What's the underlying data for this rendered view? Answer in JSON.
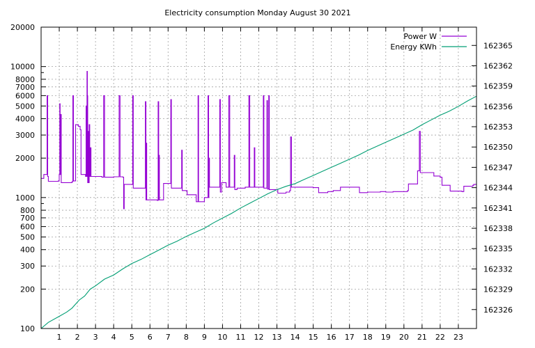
{
  "chart_data": {
    "type": "line",
    "title": "Electricity consumption Monday August 30 2021",
    "xlabel": "",
    "ylabel": "",
    "y2label": "",
    "grid": true,
    "legend_position": "top-right",
    "x_range": [
      0,
      24
    ],
    "x_ticks": [
      "1",
      "2",
      "3",
      "4",
      "5",
      "6",
      "7",
      "8",
      "9",
      "10",
      "11",
      "12",
      "13",
      "14",
      "15",
      "16",
      "17",
      "18",
      "19",
      "20",
      "21",
      "22",
      "23"
    ],
    "y_scale": "log",
    "y_range": [
      100,
      20000
    ],
    "y_ticks": [
      "100",
      "200",
      "300",
      "400",
      "500",
      "600",
      "700",
      "800",
      "1000",
      "2000",
      "3000",
      "4000",
      "5000",
      "6000",
      "7000",
      "8000",
      "10000",
      "20000"
    ],
    "y2_range": [
      162323.2,
      162367.7
    ],
    "y2_ticks": [
      "162326",
      "162329",
      "162332",
      "162335",
      "162338",
      "162341",
      "162344",
      "162347",
      "162350",
      "162353",
      "162356",
      "162359",
      "162362",
      "162365"
    ],
    "series": [
      {
        "name": "Power W",
        "axis": "y",
        "color": "#9400d3",
        "points": [
          [
            0.0,
            1400
          ],
          [
            0.15,
            1500
          ],
          [
            0.3,
            1500
          ],
          [
            0.33,
            6000
          ],
          [
            0.36,
            1450
          ],
          [
            0.4,
            1330
          ],
          [
            0.95,
            1340
          ],
          [
            1.0,
            1500
          ],
          [
            1.03,
            5200
          ],
          [
            1.05,
            1500
          ],
          [
            1.08,
            4300
          ],
          [
            1.11,
            1300
          ],
          [
            1.7,
            1320
          ],
          [
            1.75,
            6000
          ],
          [
            1.78,
            1340
          ],
          [
            1.9,
            3600
          ],
          [
            2.05,
            3500
          ],
          [
            2.15,
            3300
          ],
          [
            2.2,
            1500
          ],
          [
            2.45,
            1450
          ],
          [
            2.48,
            5000
          ],
          [
            2.5,
            1450
          ],
          [
            2.53,
            9200
          ],
          [
            2.55,
            6000
          ],
          [
            2.57,
            1300
          ],
          [
            2.6,
            3200
          ],
          [
            2.62,
            1300
          ],
          [
            2.65,
            3600
          ],
          [
            2.68,
            1450
          ],
          [
            2.72,
            2400
          ],
          [
            2.75,
            1450
          ],
          [
            3.35,
            1430
          ],
          [
            3.45,
            6000
          ],
          [
            3.5,
            1430
          ],
          [
            4.0,
            1440
          ],
          [
            4.25,
            1440
          ],
          [
            4.3,
            6000
          ],
          [
            4.35,
            1440
          ],
          [
            4.5,
            1430
          ],
          [
            4.55,
            820
          ],
          [
            4.58,
            1260
          ],
          [
            5.0,
            1260
          ],
          [
            5.05,
            6000
          ],
          [
            5.08,
            1180
          ],
          [
            5.5,
            1180
          ],
          [
            5.72,
            1180
          ],
          [
            5.75,
            5400
          ],
          [
            5.78,
            960
          ],
          [
            5.8,
            2600
          ],
          [
            5.82,
            960
          ],
          [
            6.4,
            950
          ],
          [
            6.45,
            5400
          ],
          [
            6.48,
            960
          ],
          [
            6.5,
            2100
          ],
          [
            6.52,
            960
          ],
          [
            6.7,
            960
          ],
          [
            6.75,
            1280
          ],
          [
            7.1,
            1280
          ],
          [
            7.15,
            5600
          ],
          [
            7.18,
            1180
          ],
          [
            7.5,
            1180
          ],
          [
            7.7,
            1180
          ],
          [
            7.75,
            2300
          ],
          [
            7.78,
            1130
          ],
          [
            8.0,
            1130
          ],
          [
            8.05,
            1050
          ],
          [
            8.5,
            1050
          ],
          [
            8.55,
            930
          ],
          [
            8.6,
            930
          ],
          [
            8.65,
            6000
          ],
          [
            8.68,
            930
          ],
          [
            8.9,
            930
          ],
          [
            9.0,
            1000
          ],
          [
            9.15,
            1000
          ],
          [
            9.2,
            6000
          ],
          [
            9.23,
            1000
          ],
          [
            9.25,
            2000
          ],
          [
            9.28,
            1200
          ],
          [
            9.8,
            1200
          ],
          [
            9.85,
            5600
          ],
          [
            9.88,
            1100
          ],
          [
            9.95,
            1300
          ],
          [
            10.2,
            1200
          ],
          [
            10.35,
            6000
          ],
          [
            10.4,
            1200
          ],
          [
            10.6,
            1200
          ],
          [
            10.65,
            2100
          ],
          [
            10.68,
            1150
          ],
          [
            10.8,
            1180
          ],
          [
            11.25,
            1200
          ],
          [
            11.45,
            6000
          ],
          [
            11.5,
            1200
          ],
          [
            11.7,
            1200
          ],
          [
            11.75,
            2400
          ],
          [
            11.78,
            1200
          ],
          [
            12.2,
            1200
          ],
          [
            12.25,
            6000
          ],
          [
            12.28,
            1180
          ],
          [
            12.4,
            1180
          ],
          [
            12.45,
            5500
          ],
          [
            12.48,
            1160
          ],
          [
            12.55,
            6000
          ],
          [
            12.58,
            1150
          ],
          [
            13.0,
            1150
          ],
          [
            13.05,
            1080
          ],
          [
            13.5,
            1100
          ],
          [
            13.7,
            1130
          ],
          [
            13.75,
            2900
          ],
          [
            13.8,
            1200
          ],
          [
            14.0,
            1200
          ],
          [
            14.3,
            1200
          ],
          [
            15.0,
            1190
          ],
          [
            15.3,
            1090
          ],
          [
            15.8,
            1110
          ],
          [
            16.1,
            1130
          ],
          [
            16.5,
            1200
          ],
          [
            17.5,
            1200
          ],
          [
            17.55,
            1090
          ],
          [
            18.0,
            1100
          ],
          [
            18.7,
            1110
          ],
          [
            19.0,
            1100
          ],
          [
            19.4,
            1110
          ],
          [
            20.2,
            1130
          ],
          [
            20.25,
            1270
          ],
          [
            20.7,
            1270
          ],
          [
            20.75,
            1600
          ],
          [
            20.85,
            3200
          ],
          [
            20.9,
            1550
          ],
          [
            21.25,
            1550
          ],
          [
            21.65,
            1460
          ],
          [
            22.0,
            1430
          ],
          [
            22.1,
            1240
          ],
          [
            22.5,
            1240
          ],
          [
            22.55,
            1120
          ],
          [
            23.2,
            1110
          ],
          [
            23.3,
            1220
          ],
          [
            23.8,
            1240
          ],
          [
            23.85,
            1260
          ],
          [
            24.0,
            1270
          ]
        ]
      },
      {
        "name": "Energy KWh",
        "axis": "y2",
        "color": "#009e73",
        "points": [
          [
            0.0,
            162323.2
          ],
          [
            0.4,
            162324.1
          ],
          [
            1.0,
            162325.0
          ],
          [
            1.4,
            162325.6
          ],
          [
            1.7,
            162326.2
          ],
          [
            2.1,
            162327.4
          ],
          [
            2.4,
            162328.0
          ],
          [
            2.7,
            162329.0
          ],
          [
            3.0,
            162329.5
          ],
          [
            3.5,
            162330.5
          ],
          [
            4.0,
            162331.1
          ],
          [
            4.5,
            162332.0
          ],
          [
            5.0,
            162332.8
          ],
          [
            5.5,
            162333.4
          ],
          [
            6.0,
            162334.1
          ],
          [
            6.5,
            162334.8
          ],
          [
            7.0,
            162335.5
          ],
          [
            7.5,
            162336.1
          ],
          [
            8.0,
            162336.8
          ],
          [
            8.5,
            162337.4
          ],
          [
            9.0,
            162338.0
          ],
          [
            9.5,
            162338.8
          ],
          [
            10.0,
            162339.5
          ],
          [
            10.5,
            162340.2
          ],
          [
            11.0,
            162341.0
          ],
          [
            11.5,
            162341.7
          ],
          [
            12.0,
            162342.4
          ],
          [
            12.5,
            162343.1
          ],
          [
            13.0,
            162343.7
          ],
          [
            13.5,
            162344.2
          ],
          [
            14.0,
            162344.6
          ],
          [
            14.5,
            162345.2
          ],
          [
            15.0,
            162345.8
          ],
          [
            15.5,
            162346.4
          ],
          [
            16.0,
            162347.0
          ],
          [
            16.5,
            162347.6
          ],
          [
            17.0,
            162348.2
          ],
          [
            17.5,
            162348.8
          ],
          [
            18.0,
            162349.5
          ],
          [
            18.5,
            162350.1
          ],
          [
            19.0,
            162350.7
          ],
          [
            19.5,
            162351.3
          ],
          [
            20.0,
            162351.9
          ],
          [
            20.5,
            162352.5
          ],
          [
            21.0,
            162353.3
          ],
          [
            21.5,
            162354.0
          ],
          [
            22.0,
            162354.7
          ],
          [
            22.5,
            162355.3
          ],
          [
            23.0,
            162356.0
          ],
          [
            23.5,
            162356.8
          ],
          [
            24.0,
            162357.5
          ]
        ]
      }
    ]
  }
}
